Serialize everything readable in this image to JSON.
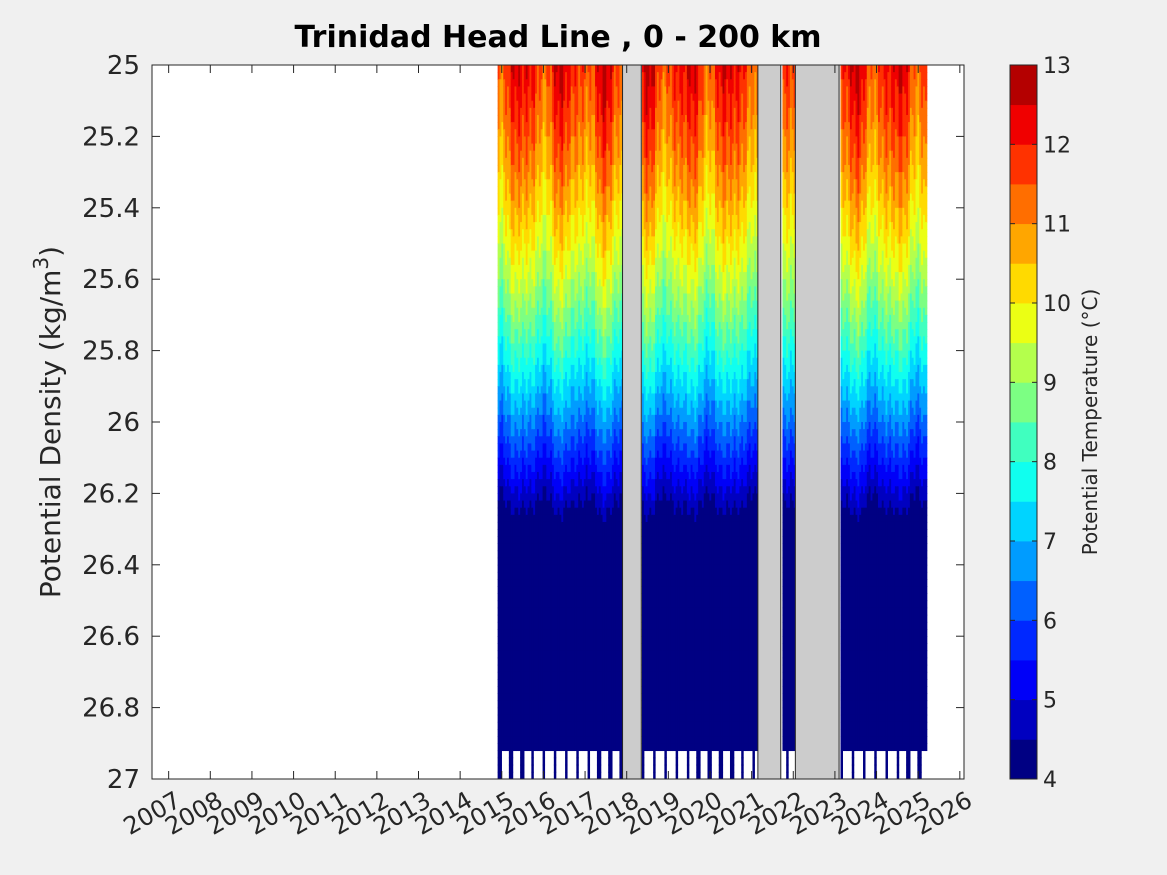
{
  "chart_data": {
    "type": "heatmap",
    "title": "Trinidad Head Line , 0 - 200 km",
    "ylabel": "Potential Density (kg/m",
    "ylabel_sup": "3",
    "ylabel_end": ")",
    "colorbar_label": "Potential Temperature (°C)",
    "x_ticks": [
      "2007",
      "2008",
      "2009",
      "2010",
      "2011",
      "2012",
      "2013",
      "2014",
      "2015",
      "2016",
      "2017",
      "2018",
      "2019",
      "2020",
      "2021",
      "2022",
      "2023",
      "2024",
      "2025",
      "2026"
    ],
    "xlim": [
      2006.6,
      2026.1
    ],
    "y_ticks": [
      "25",
      "25.2",
      "25.4",
      "25.6",
      "25.8",
      "26",
      "26.2",
      "26.4",
      "26.6",
      "26.8",
      "27"
    ],
    "ylim": [
      25,
      27
    ],
    "y_reversed": true,
    "clim": [
      4,
      13
    ],
    "colorbar_ticks": [
      "4",
      "5",
      "6",
      "7",
      "8",
      "9",
      "10",
      "11",
      "12",
      "13"
    ],
    "colormap": [
      "#000083",
      "#0000c0",
      "#0000f8",
      "#0028ff",
      "#0060ff",
      "#009cff",
      "#00d4ff",
      "#10ffef",
      "#40ffbf",
      "#7cff83",
      "#b4ff4c",
      "#ebff14",
      "#ffda00",
      "#ffa600",
      "#ff6e00",
      "#ff3200",
      "#f00000",
      "#b40000"
    ],
    "data_extent": [
      2014.9,
      2025.2
    ],
    "missing_periods": [
      [
        2017.9,
        2018.35
      ],
      [
        2021.15,
        2021.7
      ],
      [
        2022.05,
        2023.1
      ]
    ],
    "colors": {
      "missing": "#cccccc",
      "plot_bg": "#ffffff",
      "figure_bg": "#f0f0f0"
    }
  }
}
